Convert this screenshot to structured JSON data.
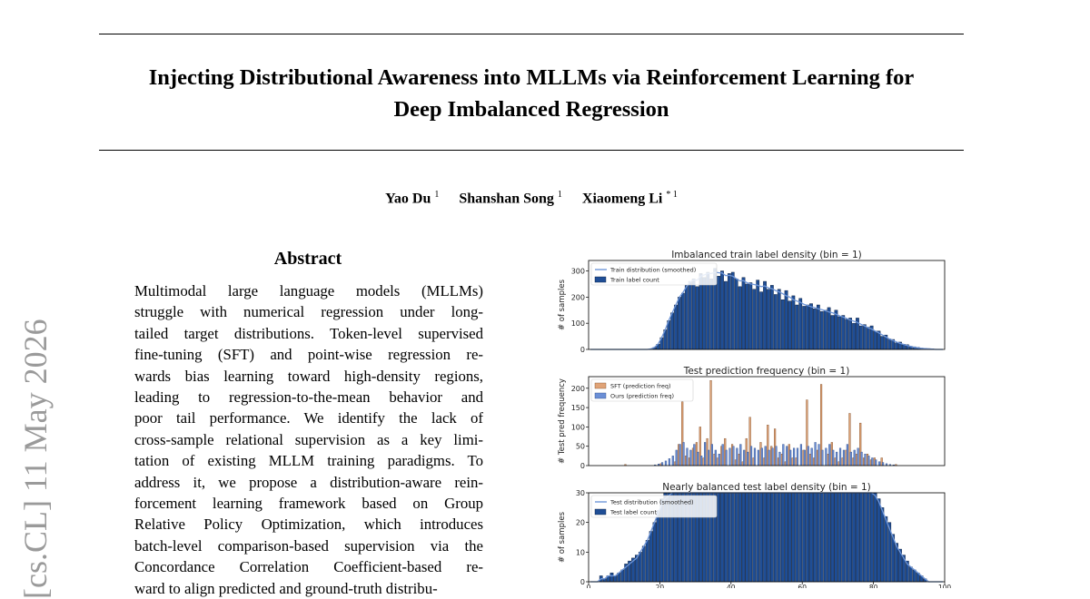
{
  "paper": {
    "title_line1": "Injecting Distributional Awareness into MLLMs via Reinforcement Learning for",
    "title_line2": "Deep Imbalanced Regression",
    "authors": [
      {
        "name": "Yao Du",
        "affil": "1"
      },
      {
        "name": "Shanshan Song",
        "affil": "1"
      },
      {
        "name": "Xiaomeng Li",
        "affil": "* 1"
      }
    ],
    "abstract_heading": "Abstract",
    "abstract_lines": [
      "Multimodal large language models (MLLMs)",
      "struggle with numerical regression under long-",
      "tailed target distributions. Token-level supervised",
      "fine-tuning (SFT) and point-wise regression re-",
      "wards bias learning toward high-density regions,",
      "leading to regression-to-the-mean behavior and",
      "poor tail performance.  We identify the lack of",
      "cross-sample relational supervision as a key limi-",
      "tation of existing MLLM training paradigms. To",
      "address it, we propose a distribution-aware rein-",
      "forcement learning framework based on Group",
      "Relative Policy Optimization, which introduces",
      "batch-level comparison-based supervision via the",
      "Concordance Correlation Coefficient-based re-",
      "ward to align predicted and ground-truth distribu-"
    ],
    "arxiv_stamp": "[cs.CL]  11 May 2026"
  },
  "colors": {
    "bar_blue": "#1f4e96",
    "bar_edge": "#0b1d3a",
    "sft_orange": "#e0a377",
    "ours_blue": "#6b8fd6",
    "smooth_line": "#6f96d8"
  },
  "chart_data": [
    {
      "type": "bar",
      "title": "Imbalanced train label density (bin = 1)",
      "ylabel": "# of samples",
      "xlim": [
        0,
        100
      ],
      "ylim": [
        0,
        340
      ],
      "yticks": [
        0,
        100,
        200,
        300
      ],
      "legend": [
        "Train distribution (smoothed)",
        "Train label count"
      ],
      "legend_position": "top-left",
      "series": [
        {
          "name": "Train label count",
          "values": [
            0,
            0,
            0,
            0,
            0,
            0,
            0,
            0,
            0,
            0,
            0,
            0,
            0,
            0,
            0,
            0,
            0,
            2,
            8,
            20,
            45,
            75,
            110,
            140,
            170,
            200,
            215,
            245,
            260,
            270,
            240,
            290,
            275,
            295,
            270,
            310,
            280,
            300,
            260,
            290,
            295,
            270,
            240,
            275,
            250,
            255,
            230,
            265,
            220,
            260,
            230,
            245,
            210,
            230,
            190,
            225,
            185,
            205,
            170,
            195,
            165,
            170,
            175,
            155,
            170,
            145,
            150,
            160,
            130,
            150,
            125,
            130,
            115,
            120,
            100,
            120,
            90,
            95,
            85,
            90,
            70,
            70,
            50,
            55,
            40,
            38,
            25,
            28,
            20,
            18,
            12,
            10,
            8,
            5,
            4,
            3,
            2,
            1,
            0,
            0
          ]
        },
        {
          "name": "Train distribution (smoothed)",
          "values": [
            0,
            0,
            0,
            0,
            0,
            0,
            0,
            0,
            0,
            0,
            0,
            0,
            0,
            0,
            0,
            0,
            0,
            2,
            8,
            20,
            45,
            75,
            110,
            140,
            170,
            200,
            218,
            240,
            258,
            265,
            265,
            280,
            285,
            290,
            290,
            295,
            293,
            292,
            282,
            283,
            280,
            270,
            262,
            263,
            255,
            250,
            248,
            245,
            240,
            243,
            235,
            232,
            225,
            220,
            213,
            205,
            200,
            190,
            185,
            180,
            172,
            168,
            163,
            160,
            155,
            152,
            148,
            143,
            140,
            135,
            128,
            124,
            118,
            112,
            108,
            103,
            96,
            90,
            83,
            78,
            70,
            63,
            55,
            48,
            40,
            34,
            28,
            23,
            19,
            15,
            11,
            8,
            6,
            4,
            3,
            2,
            1,
            0,
            0,
            0
          ]
        }
      ]
    },
    {
      "type": "bar",
      "title": "Test prediction frequency  (bin = 1)",
      "ylabel": "# Test pred frequency",
      "xlim": [
        0,
        100
      ],
      "ylim": [
        0,
        230
      ],
      "yticks": [
        0,
        50,
        100,
        150,
        200
      ],
      "legend": [
        "SFT (prediction freq)",
        "Ours (prediction freq)"
      ],
      "legend_position": "top-left",
      "series": [
        {
          "name": "SFT (prediction freq)",
          "values": [
            0,
            0,
            0,
            0,
            0,
            0,
            0,
            0,
            0,
            0,
            3,
            0,
            0,
            0,
            0,
            0,
            0,
            0,
            0,
            0,
            5,
            0,
            0,
            0,
            10,
            55,
            165,
            25,
            20,
            45,
            60,
            100,
            20,
            70,
            220,
            30,
            20,
            50,
            70,
            0,
            55,
            15,
            30,
            10,
            70,
            125,
            20,
            0,
            60,
            20,
            105,
            50,
            95,
            20,
            30,
            10,
            55,
            20,
            20,
            0,
            40,
            170,
            30,
            20,
            40,
            210,
            0,
            30,
            60,
            20,
            10,
            20,
            40,
            135,
            20,
            30,
            110,
            20,
            30,
            15,
            20,
            0,
            20,
            0,
            0,
            0,
            3,
            0,
            0,
            0,
            0,
            0,
            0,
            0,
            0,
            0,
            0,
            0,
            0,
            0
          ]
        },
        {
          "name": "Ours (prediction freq)",
          "values": [
            0,
            0,
            0,
            0,
            0,
            0,
            0,
            0,
            0,
            0,
            0,
            0,
            0,
            0,
            0,
            0,
            0,
            0,
            2,
            4,
            8,
            12,
            18,
            25,
            40,
            55,
            60,
            45,
            40,
            55,
            35,
            25,
            60,
            40,
            55,
            40,
            30,
            55,
            40,
            45,
            50,
            45,
            55,
            40,
            35,
            50,
            45,
            40,
            45,
            50,
            40,
            45,
            50,
            35,
            55,
            50,
            40,
            45,
            45,
            55,
            40,
            50,
            45,
            60,
            55,
            40,
            45,
            55,
            40,
            35,
            45,
            40,
            55,
            35,
            40,
            45,
            35,
            30,
            25,
            20,
            15,
            10,
            8,
            5,
            3,
            2,
            0,
            0,
            0,
            0,
            0,
            0,
            0,
            0,
            0,
            0,
            0,
            0,
            0,
            0
          ]
        }
      ]
    },
    {
      "type": "bar",
      "title": "Nearly balanced test label density (bin = 1)",
      "ylabel": "# of samples",
      "xlabel_ticks": [
        0,
        20,
        40,
        60,
        80,
        100
      ],
      "xlim": [
        0,
        100
      ],
      "ylim": [
        0,
        30
      ],
      "yticks": [
        0,
        10,
        20,
        30
      ],
      "legend": [
        "Test distribution (smoothed)",
        "Test label count"
      ],
      "legend_position": "top-left",
      "series": [
        {
          "name": "Test label count",
          "values": [
            0,
            0,
            0,
            2,
            1,
            2,
            3,
            2,
            3,
            4,
            6,
            7,
            8,
            9,
            10,
            12,
            14,
            17,
            20,
            24,
            28,
            30,
            30,
            30,
            30,
            30,
            30,
            30,
            30,
            30,
            30,
            30,
            30,
            30,
            30,
            30,
            30,
            30,
            30,
            30,
            30,
            30,
            30,
            30,
            30,
            30,
            30,
            30,
            30,
            30,
            30,
            30,
            30,
            30,
            30,
            30,
            30,
            30,
            30,
            30,
            30,
            30,
            30,
            30,
            30,
            30,
            30,
            30,
            30,
            30,
            30,
            30,
            30,
            30,
            30,
            30,
            30,
            30,
            30,
            30,
            30,
            28,
            25,
            22,
            20,
            16,
            13,
            11,
            9,
            7,
            5,
            4,
            3,
            2,
            1,
            0,
            0,
            0,
            0,
            0
          ]
        },
        {
          "name": "Test distribution (smoothed)",
          "values": [
            0,
            0,
            0,
            1,
            1,
            2,
            2,
            2,
            3,
            4,
            5,
            6,
            7,
            8,
            10,
            12,
            14,
            17,
            20,
            23,
            26,
            28,
            29,
            30,
            30,
            30,
            30,
            30,
            30,
            30,
            30,
            30,
            30,
            30,
            30,
            30,
            30,
            30,
            30,
            30,
            30,
            30,
            30,
            30,
            30,
            30,
            30,
            30,
            30,
            30,
            30,
            30,
            30,
            30,
            30,
            30,
            30,
            30,
            30,
            30,
            30,
            30,
            30,
            30,
            30,
            30,
            30,
            30,
            30,
            30,
            30,
            30,
            30,
            30,
            30,
            30,
            30,
            30,
            30,
            30,
            29,
            27,
            24,
            21,
            18,
            15,
            12,
            10,
            8,
            6,
            5,
            4,
            3,
            2,
            1,
            0,
            0,
            0,
            0,
            0
          ]
        }
      ]
    }
  ]
}
